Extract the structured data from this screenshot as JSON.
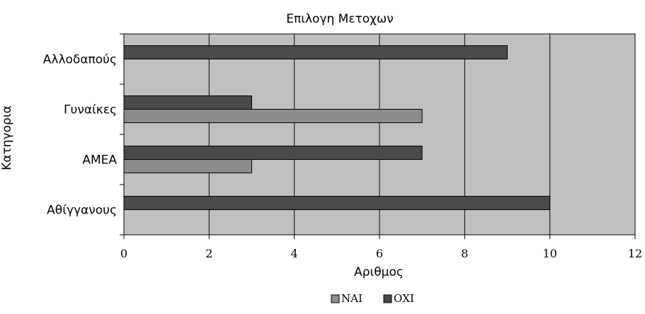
{
  "chart_data": {
    "type": "bar",
    "orientation": "horizontal",
    "title": "Επιλογη Μετοχων",
    "xlabel": "Αριθμος",
    "ylabel": "Κατηγορια",
    "categories": [
      "Αθίγγανους",
      "ΑΜΕΑ",
      "Γυναίκες",
      "Αλλοδαπούς"
    ],
    "series": [
      {
        "name": "ΝΑΙ",
        "color": "#8c8c8c",
        "values": [
          0,
          3,
          7,
          0
        ]
      },
      {
        "name": "ΟΧΙ",
        "color": "#4a4a4a",
        "values": [
          10,
          7,
          3,
          9
        ]
      }
    ],
    "xlim": [
      0,
      12
    ],
    "xticks": [
      "0",
      "2",
      "4",
      "6",
      "8",
      "10",
      "12"
    ],
    "grid": true,
    "plot_background": "#c0c0c0",
    "legend_position": "bottom"
  }
}
